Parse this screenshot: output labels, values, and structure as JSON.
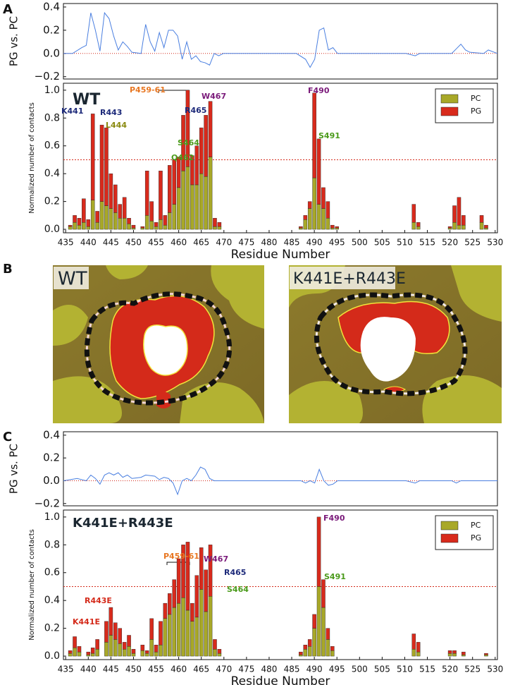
{
  "panel_labels": [
    "A",
    "B",
    "C"
  ],
  "images": [
    {
      "label": "WT"
    },
    {
      "label": "K441E+R443E"
    }
  ],
  "chart_data": [
    {
      "type": "line",
      "ylabel": "PG vs. PC",
      "color": "#4a7fe0",
      "x": [
        435,
        437,
        439,
        440,
        441,
        442,
        443,
        444,
        445,
        446,
        447,
        448,
        449,
        450,
        452,
        453,
        454,
        455,
        456,
        457,
        458,
        459,
        460,
        461,
        462,
        463,
        464,
        465,
        466,
        467,
        468,
        469,
        470,
        486,
        488,
        489,
        490,
        491,
        492,
        493,
        494,
        495,
        497,
        510,
        512,
        513,
        520,
        521,
        522,
        523,
        524,
        527,
        528,
        530
      ],
      "values": [
        0,
        0,
        0.05,
        0.07,
        0.35,
        0.2,
        0.02,
        0.35,
        0.3,
        0.15,
        0.03,
        0.1,
        0.06,
        0.01,
        0,
        0.25,
        0.1,
        0.02,
        0.18,
        0.05,
        0.2,
        0.2,
        0.15,
        -0.05,
        0.1,
        -0.05,
        -0.02,
        -0.07,
        -0.08,
        -0.1,
        0,
        -0.02,
        0,
        0,
        -0.05,
        -0.12,
        -0.05,
        0.2,
        0.22,
        0.03,
        0.05,
        0,
        0,
        0,
        -0.02,
        0,
        0,
        0.04,
        0.08,
        0.03,
        0.01,
        0,
        0.03,
        0
      ],
      "xlim": [
        435,
        530
      ],
      "ylim": [
        -0.22,
        0.43
      ],
      "yticks": [
        {
          "value": -0.2,
          "label": "−0.2"
        },
        {
          "value": 0,
          "label": "0.0"
        },
        0.2,
        0.4
      ],
      "hline": {
        "value": 0,
        "color": "#d42a1a"
      }
    },
    {
      "type": "bar",
      "stacked": true,
      "xlabel": "Residue Number",
      "ylabel": "Normalized number of contacts",
      "x": [
        436,
        437,
        438,
        439,
        440,
        441,
        442,
        443,
        444,
        445,
        446,
        447,
        448,
        449,
        450,
        452,
        453,
        454,
        455,
        456,
        457,
        458,
        459,
        460,
        461,
        462,
        463,
        464,
        465,
        466,
        467,
        468,
        469,
        487,
        488,
        489,
        490,
        491,
        492,
        493,
        494,
        495,
        512,
        513,
        520,
        521,
        522,
        523,
        527,
        528
      ],
      "series": [
        {
          "name": "PC",
          "color": "#a8a828",
          "values": [
            0.02,
            0.05,
            0.03,
            0.05,
            0.02,
            0.21,
            0.05,
            0.2,
            0.17,
            0.15,
            0.12,
            0.08,
            0.08,
            0.04,
            0.01,
            0.01,
            0.1,
            0.06,
            0.02,
            0.07,
            0.03,
            0.12,
            0.18,
            0.3,
            0.42,
            0.45,
            0.32,
            0.32,
            0.4,
            0.38,
            0.52,
            0.02,
            0.02,
            0.01,
            0.07,
            0.15,
            0.37,
            0.18,
            0.15,
            0.08,
            0.01,
            0.01,
            0.05,
            0.02,
            0.01,
            0.05,
            0.03,
            0.03,
            0.05,
            0.01
          ]
        },
        {
          "name": "PG",
          "color": "#d82a1c",
          "values": [
            0.01,
            0.05,
            0.05,
            0.17,
            0.05,
            0.62,
            0.08,
            0.55,
            0.56,
            0.25,
            0.2,
            0.1,
            0.15,
            0.04,
            0.02,
            0.01,
            0.32,
            0.14,
            0.03,
            0.35,
            0.07,
            0.34,
            0.32,
            0.22,
            0.4,
            0.55,
            0.21,
            0.28,
            0.33,
            0.44,
            0.4,
            0.06,
            0.03,
            0.01,
            0.03,
            0.05,
            0.61,
            0.47,
            0.15,
            0.12,
            0.02,
            0.01,
            0.13,
            0.03,
            0.01,
            0.12,
            0.2,
            0.07,
            0.05,
            0.02
          ]
        }
      ],
      "xlim": [
        434.5,
        530.5
      ],
      "xticks": [
        435,
        440,
        445,
        450,
        455,
        460,
        465,
        470,
        475,
        480,
        485,
        490,
        495,
        500,
        505,
        510,
        515,
        520,
        525,
        530
      ],
      "ylim": [
        -0.025,
        1.05
      ],
      "yticks": [
        {
          "value": 0,
          "label": "0.0"
        },
        0.2,
        0.4,
        0.6,
        0.8,
        {
          "value": 1,
          "label": "1.0"
        }
      ],
      "hline": {
        "value": 0.5,
        "color": "#d42a1a"
      },
      "legend": "upper right",
      "annotations": [
        {
          "text": "WT",
          "color": "#1a2630"
        },
        {
          "text": "P459-61",
          "color": "#e87722"
        },
        {
          "text": "K441",
          "color": "#1d2a7a"
        },
        {
          "text": "R443",
          "color": "#1d2a7a"
        },
        {
          "text": "L444",
          "color": "#8a8a10"
        },
        {
          "text": "R465",
          "color": "#1d2a7a"
        },
        {
          "text": "W467",
          "color": "#7a1a7a"
        },
        {
          "text": "S464",
          "color": "#4a9a1a"
        },
        {
          "text": "Q462",
          "color": "#4a9a1a"
        },
        {
          "text": "F490",
          "color": "#7a1a7a"
        },
        {
          "text": "S491",
          "color": "#4a9a1a"
        }
      ]
    },
    {
      "type": "line",
      "ylabel": "PG vs. PC",
      "color": "#4a7fe0",
      "x": [
        435,
        438,
        440,
        441,
        442,
        443,
        444,
        445,
        446,
        447,
        448,
        449,
        450,
        452,
        453,
        455,
        456,
        457,
        458,
        459,
        460,
        461,
        462,
        463,
        464,
        465,
        466,
        467,
        468,
        470,
        487,
        488,
        489,
        490,
        491,
        492,
        493,
        494,
        495,
        510,
        512,
        513,
        520,
        521,
        522,
        530
      ],
      "values": [
        0,
        0.02,
        0,
        0.05,
        0.02,
        -0.03,
        0.05,
        0.07,
        0.05,
        0.07,
        0.03,
        0.05,
        0.02,
        0.03,
        0.05,
        0.04,
        0.01,
        0.03,
        0.02,
        -0.02,
        -0.12,
        0,
        0.02,
        0,
        0.05,
        0.12,
        0.1,
        0.02,
        0,
        0,
        0,
        -0.02,
        0,
        -0.02,
        0.1,
        0,
        -0.04,
        -0.03,
        0,
        0,
        -0.02,
        0,
        0,
        -0.02,
        0,
        0
      ],
      "xlim": [
        435,
        530
      ],
      "ylim": [
        -0.22,
        0.43
      ],
      "yticks": [
        {
          "value": -0.2,
          "label": "−0.2"
        },
        {
          "value": 0,
          "label": "0.0"
        },
        0.2,
        0.4
      ],
      "hline": {
        "value": 0,
        "color": "#d42a1a"
      }
    },
    {
      "type": "bar",
      "stacked": true,
      "xlabel": "Residue Number",
      "ylabel": "Normalized number of contacts",
      "x": [
        436,
        437,
        438,
        440,
        441,
        442,
        444,
        445,
        446,
        447,
        448,
        449,
        450,
        452,
        453,
        454,
        455,
        456,
        457,
        458,
        459,
        460,
        461,
        462,
        463,
        464,
        465,
        466,
        467,
        468,
        469,
        487,
        488,
        489,
        490,
        491,
        492,
        493,
        494,
        512,
        513,
        520,
        521,
        523,
        528
      ],
      "series": [
        {
          "name": "PC",
          "color": "#a8a828",
          "values": [
            0.02,
            0.06,
            0.03,
            0.01,
            0.02,
            0.05,
            0.1,
            0.15,
            0.12,
            0.09,
            0.05,
            0.07,
            0.02,
            0.04,
            0.02,
            0.12,
            0.03,
            0.08,
            0.27,
            0.3,
            0.35,
            0.38,
            0.42,
            0.33,
            0.25,
            0.28,
            0.48,
            0.32,
            0.43,
            0.05,
            0.02,
            0.01,
            0.05,
            0.07,
            0.2,
            0.5,
            0.35,
            0.12,
            0.04,
            0.05,
            0.03,
            0.02,
            0.02,
            0.01,
            0.01
          ]
        },
        {
          "name": "PG",
          "color": "#d82a1c",
          "values": [
            0.02,
            0.08,
            0.04,
            0.02,
            0.04,
            0.07,
            0.15,
            0.2,
            0.12,
            0.11,
            0.05,
            0.08,
            0.03,
            0.04,
            0.02,
            0.15,
            0.05,
            0.17,
            0.11,
            0.15,
            0.2,
            0.32,
            0.38,
            0.49,
            0.13,
            0.3,
            0.3,
            0.3,
            0.37,
            0.07,
            0.03,
            0.02,
            0.03,
            0.05,
            0.1,
            0.5,
            0.2,
            0.08,
            0.03,
            0.11,
            0.07,
            0.02,
            0.02,
            0.02,
            0.01
          ]
        }
      ],
      "xlim": [
        434.5,
        530.5
      ],
      "xticks": [
        435,
        440,
        445,
        450,
        455,
        460,
        465,
        470,
        475,
        480,
        485,
        490,
        495,
        500,
        505,
        510,
        515,
        520,
        525,
        530
      ],
      "ylim": [
        -0.025,
        1.05
      ],
      "yticks": [
        {
          "value": 0,
          "label": "0.0"
        },
        0.2,
        0.4,
        0.6,
        0.8,
        {
          "value": 1,
          "label": "1.0"
        }
      ],
      "hline": {
        "value": 0.5,
        "color": "#d42a1a"
      },
      "legend": "upper right",
      "annotations": [
        {
          "text": "K441E+R443E",
          "color": "#1a2630"
        },
        {
          "text": "P459-61",
          "color": "#e87722"
        },
        {
          "text": "W467",
          "color": "#7a1a7a"
        },
        {
          "text": "R465",
          "color": "#1d2a7a"
        },
        {
          "text": "S464",
          "color": "#4a9a1a"
        },
        {
          "text": "R443E",
          "color": "#d42a1a"
        },
        {
          "text": "K441E",
          "color": "#d42a1a"
        },
        {
          "text": "F490",
          "color": "#7a1a7a"
        },
        {
          "text": "S491",
          "color": "#4a9a1a"
        }
      ]
    }
  ]
}
